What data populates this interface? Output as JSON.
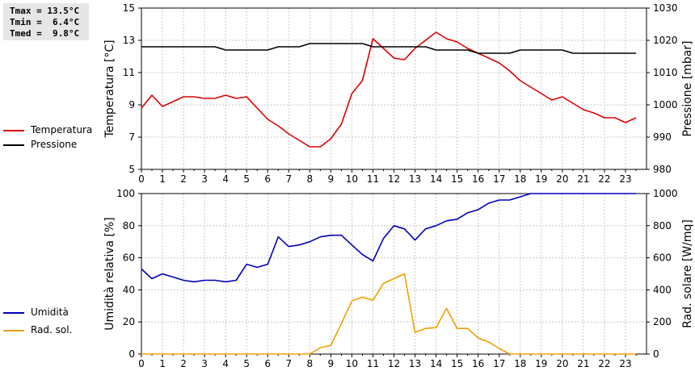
{
  "stats": {
    "tmax": "Tmax = 13.5°C",
    "tmin": "Tmin =  6.4°C",
    "tmed": "Tmed =  9.8°C"
  },
  "legend_top": [
    {
      "label": "Temperatura",
      "color": "#dd0000"
    },
    {
      "label": "Pressione",
      "color": "#000000"
    }
  ],
  "legend_bottom": [
    {
      "label": "Umidità",
      "color": "#0000bb"
    },
    {
      "label": "Rad. sol.",
      "color": "#f0a000"
    }
  ],
  "chart_data": [
    {
      "type": "line",
      "xlabel": "",
      "ylabel": "Temperatura [°C]",
      "y2label": "Pressione [mbar]",
      "xlim": [
        0,
        24
      ],
      "xticks": [
        "0",
        "1",
        "2",
        "3",
        "4",
        "5",
        "6",
        "7",
        "8",
        "9",
        "10",
        "11",
        "12",
        "13",
        "14",
        "15",
        "16",
        "17",
        "18",
        "19",
        "20",
        "21",
        "22",
        "23"
      ],
      "ylim": [
        5,
        15
      ],
      "yticks": [
        5,
        7,
        9,
        11,
        13,
        15
      ],
      "y2lim": [
        980,
        1030
      ],
      "y2ticks": [
        980,
        990,
        1000,
        1010,
        1020,
        1030
      ],
      "grid": true,
      "series": [
        {
          "name": "Temperatura",
          "axis": "left",
          "color": "#dd0000",
          "x": [
            0,
            0.5,
            1,
            1.5,
            2,
            2.5,
            3,
            3.5,
            4,
            4.5,
            5,
            5.5,
            6,
            6.5,
            7,
            7.5,
            8,
            8.5,
            9,
            9.5,
            10,
            10.5,
            11,
            11.5,
            12,
            12.5,
            13,
            13.5,
            14,
            14.5,
            15,
            15.5,
            16,
            16.5,
            17,
            17.5,
            18,
            18.5,
            19,
            19.5,
            20,
            20.5,
            21,
            21.5,
            22,
            22.5,
            23,
            23.5
          ],
          "values": [
            8.8,
            9.6,
            8.9,
            9.2,
            9.5,
            9.5,
            9.4,
            9.4,
            9.6,
            9.4,
            9.5,
            8.8,
            8.1,
            7.7,
            7.2,
            6.8,
            6.4,
            6.4,
            6.9,
            7.8,
            9.7,
            10.5,
            13.1,
            12.5,
            11.9,
            11.8,
            12.5,
            13.0,
            13.5,
            13.1,
            12.9,
            12.5,
            12.2,
            11.9,
            11.6,
            11.1,
            10.5,
            10.1,
            9.7,
            9.3,
            9.5,
            9.1,
            8.7,
            8.5,
            8.2,
            8.2,
            7.9,
            8.2
          ]
        },
        {
          "name": "Pressione",
          "axis": "right",
          "color": "#000000",
          "x": [
            0,
            0.5,
            1,
            1.5,
            2,
            2.5,
            3,
            3.5,
            4,
            4.5,
            5,
            5.5,
            6,
            6.5,
            7,
            7.5,
            8,
            8.5,
            9,
            9.5,
            10,
            10.5,
            11,
            11.5,
            12,
            12.5,
            13,
            13.5,
            14,
            14.5,
            15,
            15.5,
            16,
            16.5,
            17,
            17.5,
            18,
            18.5,
            19,
            19.5,
            20,
            20.5,
            21,
            21.5,
            22,
            22.5,
            23,
            23.5
          ],
          "values": [
            1018,
            1018,
            1018,
            1018,
            1018,
            1018,
            1018,
            1018,
            1017,
            1017,
            1017,
            1017,
            1017,
            1018,
            1018,
            1018,
            1019,
            1019,
            1019,
            1019,
            1019,
            1019,
            1018,
            1018,
            1018,
            1018,
            1018,
            1018,
            1017,
            1017,
            1017,
            1017,
            1016,
            1016,
            1016,
            1016,
            1017,
            1017,
            1017,
            1017,
            1017,
            1016,
            1016,
            1016,
            1016,
            1016,
            1016,
            1016
          ]
        }
      ]
    },
    {
      "type": "line",
      "xlabel": "",
      "ylabel": "Umidità relativa [%]",
      "y2label": "Rad. solare [W/mq]",
      "xlim": [
        0,
        24
      ],
      "xticks": [
        "0",
        "1",
        "2",
        "3",
        "4",
        "5",
        "6",
        "7",
        "8",
        "9",
        "10",
        "11",
        "12",
        "13",
        "14",
        "15",
        "16",
        "17",
        "18",
        "19",
        "20",
        "21",
        "22",
        "23"
      ],
      "ylim": [
        0,
        100
      ],
      "yticks": [
        0,
        20,
        40,
        60,
        80,
        100
      ],
      "y2lim": [
        0,
        1000
      ],
      "y2ticks": [
        0,
        200,
        400,
        600,
        800,
        1000
      ],
      "grid": true,
      "series": [
        {
          "name": "Umidità",
          "axis": "left",
          "color": "#0000bb",
          "x": [
            0,
            0.5,
            1,
            1.5,
            2,
            2.5,
            3,
            3.5,
            4,
            4.5,
            5,
            5.5,
            6,
            6.5,
            7,
            7.5,
            8,
            8.5,
            9,
            9.5,
            10,
            10.5,
            11,
            11.5,
            12,
            12.5,
            13,
            13.5,
            14,
            14.5,
            15,
            15.5,
            16,
            16.5,
            17,
            17.5,
            18,
            18.5,
            19,
            19.5,
            20,
            20.5,
            21,
            21.5,
            22,
            22.5,
            23,
            23.5
          ],
          "values": [
            53,
            47,
            50,
            48,
            46,
            45,
            46,
            46,
            45,
            46,
            56,
            54,
            56,
            73,
            67,
            68,
            70,
            73,
            74,
            74,
            68,
            62,
            58,
            72,
            80,
            78,
            71,
            78,
            80,
            83,
            84,
            88,
            90,
            94,
            96,
            96,
            98,
            100,
            100,
            100,
            100,
            100,
            100,
            100,
            100,
            100,
            100,
            100
          ]
        },
        {
          "name": "Rad. sol.",
          "axis": "right",
          "color": "#f0a000",
          "x": [
            0,
            0.5,
            1,
            1.5,
            2,
            2.5,
            3,
            3.5,
            4,
            4.5,
            5,
            5.5,
            6,
            6.5,
            7,
            7.5,
            8,
            8.5,
            9,
            9.5,
            10,
            10.5,
            11,
            11.5,
            12,
            12.5,
            13,
            13.5,
            14,
            14.5,
            15,
            15.5,
            16,
            16.5,
            17,
            17.5,
            18,
            18.5,
            19,
            19.5,
            20,
            20.5,
            21,
            21.5,
            22,
            22.5,
            23,
            23.5
          ],
          "values": [
            0,
            0,
            0,
            0,
            0,
            0,
            0,
            0,
            0,
            0,
            0,
            0,
            0,
            0,
            0,
            0,
            0,
            40,
            55,
            190,
            330,
            355,
            335,
            440,
            470,
            500,
            135,
            160,
            165,
            285,
            160,
            160,
            100,
            75,
            35,
            0,
            0,
            0,
            0,
            0,
            0,
            0,
            0,
            0,
            0,
            0,
            0,
            0
          ]
        }
      ]
    }
  ]
}
